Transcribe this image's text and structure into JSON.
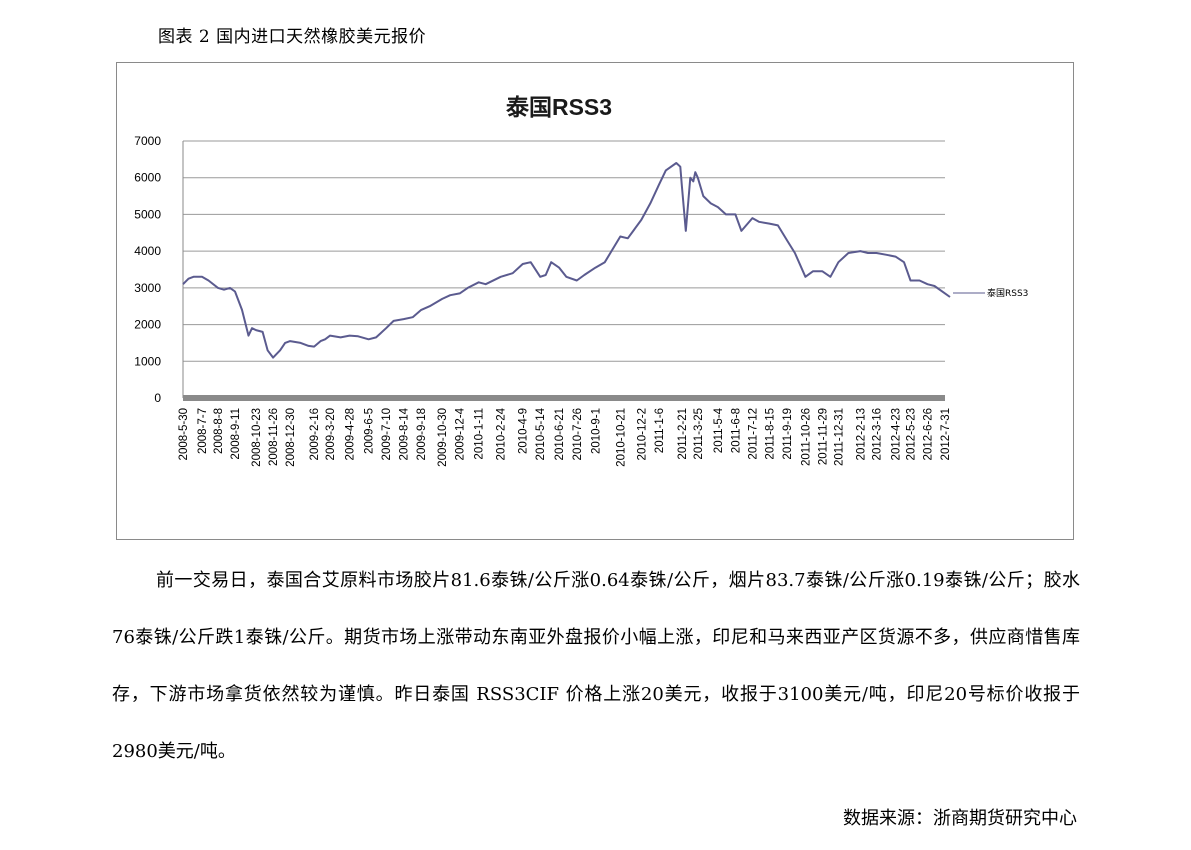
{
  "caption": "图表 2  国内进口天然橡胶美元报价",
  "chart_data": {
    "type": "line",
    "title": "泰国RSS3",
    "xlabel": "",
    "ylabel": "",
    "ylim": [
      0,
      7000
    ],
    "yticks": [
      "0",
      "1000",
      "2000",
      "3000",
      "4000",
      "5000",
      "6000",
      "7000"
    ],
    "grid": true,
    "legend": "right",
    "series_color": "#5b5b8f",
    "x_labels": [
      "2008-5-30",
      "2008-7-7",
      "2008-8-8",
      "2008-9-11",
      "2008-10-23",
      "2008-11-26",
      "2008-12-30",
      "2009-2-16",
      "2009-3-20",
      "2009-4-28",
      "2009-6-5",
      "2009-7-10",
      "2009-8-14",
      "2009-9-18",
      "2009-10-30",
      "2009-12-4",
      "2010-1-11",
      "2010-2-24",
      "2010-4-9",
      "2010-5-14",
      "2010-6-21",
      "2010-7-26",
      "2010-9-1",
      "2010-10-21",
      "2010-12-2",
      "2011-1-6",
      "2011-2-21",
      "2011-3-25",
      "2011-5-4",
      "2011-6-8",
      "2011-7-12",
      "2011-8-15",
      "2011-9-19",
      "2011-10-26",
      "2011-11-29",
      "2011-12-31",
      "2012-2-13",
      "2012-3-16",
      "2012-4-23",
      "2012-5-23",
      "2012-6-26",
      "2012-7-31"
    ],
    "series": [
      {
        "name": "泰国RSS3",
        "x": [
          "2008-5-30",
          "2008-6-10",
          "2008-6-20",
          "2008-7-7",
          "2008-7-20",
          "2008-8-8",
          "2008-8-20",
          "2008-9-1",
          "2008-9-11",
          "2008-9-25",
          "2008-10-8",
          "2008-10-15",
          "2008-10-23",
          "2008-11-5",
          "2008-11-15",
          "2008-11-26",
          "2008-12-10",
          "2008-12-20",
          "2008-12-30",
          "2009-1-20",
          "2009-2-5",
          "2009-2-16",
          "2009-3-1",
          "2009-3-10",
          "2009-3-20",
          "2009-4-10",
          "2009-4-28",
          "2009-5-15",
          "2009-6-5",
          "2009-6-20",
          "2009-7-10",
          "2009-7-25",
          "2009-8-14",
          "2009-9-1",
          "2009-9-18",
          "2009-10-5",
          "2009-10-30",
          "2009-11-15",
          "2009-12-4",
          "2009-12-20",
          "2010-1-11",
          "2010-1-25",
          "2010-2-24",
          "2010-3-20",
          "2010-4-9",
          "2010-4-25",
          "2010-5-14",
          "2010-5-25",
          "2010-6-5",
          "2010-6-21",
          "2010-7-5",
          "2010-7-26",
          "2010-8-10",
          "2010-9-1",
          "2010-9-20",
          "2010-10-21",
          "2010-11-5",
          "2010-12-2",
          "2010-12-20",
          "2011-1-6",
          "2011-1-20",
          "2011-2-10",
          "2011-2-18",
          "2011-2-21",
          "2011-3-1",
          "2011-3-10",
          "2011-3-16",
          "2011-3-20",
          "2011-3-25",
          "2011-4-5",
          "2011-4-20",
          "2011-5-4",
          "2011-5-20",
          "2011-6-8",
          "2011-6-20",
          "2011-7-12",
          "2011-7-25",
          "2011-8-15",
          "2011-9-1",
          "2011-9-19",
          "2011-10-5",
          "2011-10-26",
          "2011-11-10",
          "2011-11-29",
          "2011-12-15",
          "2011-12-31",
          "2012-1-20",
          "2012-2-13",
          "2012-2-28",
          "2012-3-16",
          "2012-4-5",
          "2012-4-23",
          "2012-5-10",
          "2012-5-23",
          "2012-6-10",
          "2012-6-26",
          "2012-7-10",
          "2012-7-31",
          "2012-8-10"
        ],
        "values": [
          3100,
          3250,
          3300,
          3300,
          3200,
          3000,
          2950,
          3000,
          2900,
          2400,
          1700,
          1900,
          1850,
          1800,
          1300,
          1100,
          1300,
          1500,
          1550,
          1500,
          1420,
          1400,
          1550,
          1600,
          1700,
          1650,
          1700,
          1680,
          1600,
          1650,
          1900,
          2100,
          2150,
          2200,
          2400,
          2500,
          2700,
          2800,
          2850,
          3000,
          3150,
          3100,
          3300,
          3400,
          3650,
          3700,
          3300,
          3350,
          3700,
          3550,
          3300,
          3200,
          3350,
          3550,
          3700,
          4400,
          4350,
          4850,
          5300,
          5800,
          6200,
          6400,
          6300,
          5800,
          4550,
          6000,
          5900,
          6150,
          6000,
          5500,
          5300,
          5200,
          5000,
          5000,
          4550,
          4900,
          4800,
          4750,
          4700,
          4300,
          3950,
          3300,
          3450,
          3450,
          3300,
          3700,
          3950,
          4000,
          3950,
          3950,
          3900,
          3850,
          3700,
          3200,
          3200,
          3100,
          3050,
          2850,
          2750
        ]
      }
    ]
  },
  "body_text": {
    "p1": "前一交易日，泰国合艾原料市场胶片81.6泰铢/公斤涨0.64泰铢/公斤，烟片83.7泰铢/公斤涨0.19泰铢/公斤；胶水76泰铢/公斤跌1泰铢/公斤。期货市场上涨带动东南亚外盘报价小幅上涨，印尼和马来西亚产区货源不多，供应商惜售库存，下游市场拿货依然较为谨慎。昨日泰国 RSS3CIF 价格上涨20美元，收报于3100美元/吨，印尼20号标价收报于2980美元/吨。"
  },
  "source": "数据来源：浙商期货研究中心"
}
